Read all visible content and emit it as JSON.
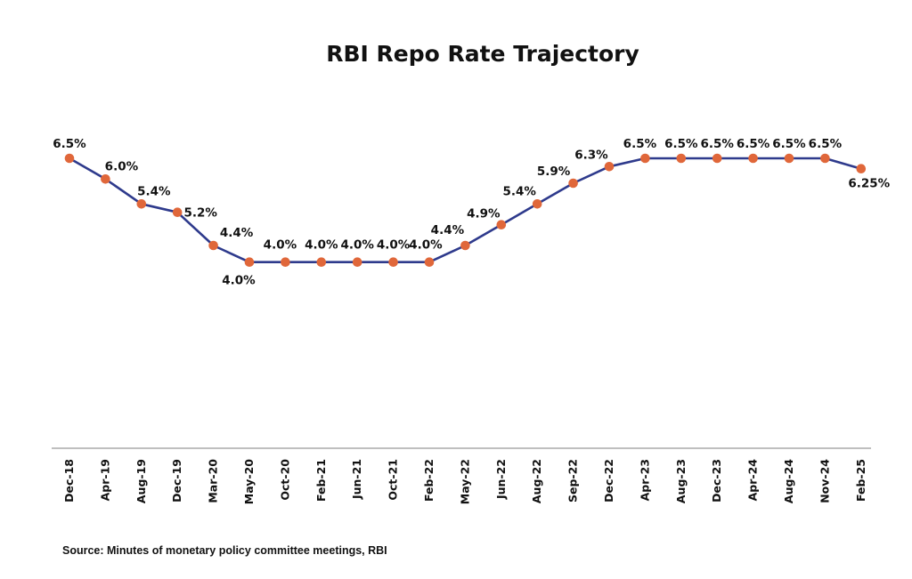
{
  "chart_data": {
    "type": "line",
    "title": "RBI Repo Rate Trajectory",
    "source": "Source: Minutes of monetary policy committee meetings, RBI",
    "categories": [
      "Dec-18",
      "Apr-19",
      "Aug-19",
      "Dec-19",
      "Mar-20",
      "May-20",
      "Oct-20",
      "Feb-21",
      "Jun-21",
      "Oct-21",
      "Feb-22",
      "May-22",
      "Jun-22",
      "Aug-22",
      "Sep-22",
      "Dec-22",
      "Apr-23",
      "Aug-23",
      "Dec-23",
      "Apr-24",
      "Aug-24",
      "Nov-24",
      "Feb-25"
    ],
    "series": [
      {
        "values": [
          6.5,
          6.0,
          5.4,
          5.2,
          4.4,
          4.0,
          4.0,
          4.0,
          4.0,
          4.0,
          4.0,
          4.4,
          4.9,
          5.4,
          5.9,
          6.3,
          6.5,
          6.5,
          6.5,
          6.5,
          6.5,
          6.5,
          6.25
        ],
        "labels": [
          "6.5%",
          "6.0%",
          "5.4%",
          "5.2%",
          "4.4%",
          "4.0%",
          "4.0%",
          "4.0%",
          "4.0%",
          "4.0%",
          "4.0%",
          "4.4%",
          "4.9%",
          "5.4%",
          "5.9%",
          "6.3%",
          "6.5%",
          "6.5%",
          "6.5%",
          "6.5%",
          "6.5%",
          "6.5%",
          "6.25%"
        ]
      }
    ],
    "xlabel": "",
    "ylabel": "",
    "ylim": [
      1.55,
      6.5
    ],
    "grid": false,
    "legend": "none",
    "colors": {
      "line": "#2e3a8c",
      "marker": "#e0673a",
      "axis": "#999999",
      "text": "#111111"
    }
  }
}
